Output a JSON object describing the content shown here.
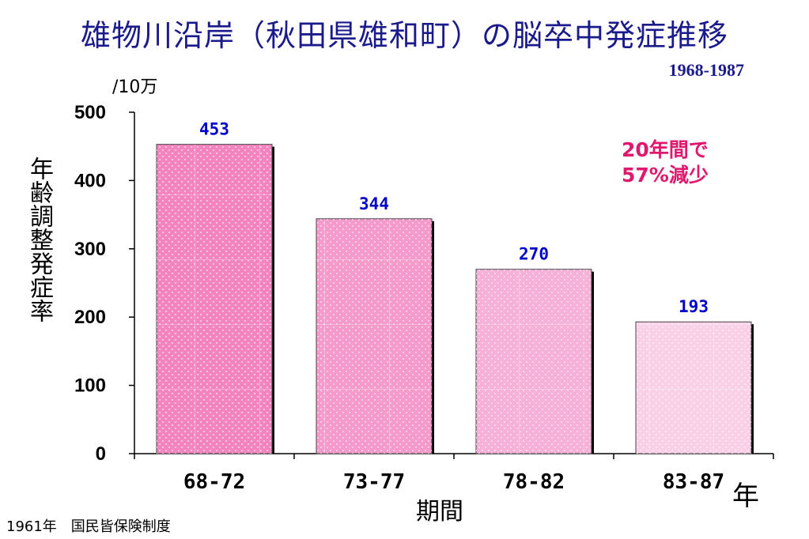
{
  "title": "雄物川沿岸（秋田県雄和町）の脳卒中発症推移",
  "subtitle": "1968-1987",
  "unit_label": "/10万",
  "annotation": "20年間で\n57%減少",
  "year_suffix": "年",
  "note": "1961年　国民皆保険制度",
  "colors": {
    "title": "#1a1a8c",
    "values": "#0000cc",
    "annotation": "#e0186e",
    "bars": [
      "#f284c0",
      "#f59bcc",
      "#f7b1d8",
      "#fad0e7"
    ]
  },
  "chart_data": {
    "type": "bar",
    "categories": [
      "68-72",
      "73-77",
      "78-82",
      "83-87"
    ],
    "values": [
      453,
      344,
      270,
      193
    ],
    "xlabel": "期間",
    "ylabel": "年齢調整発症率",
    "ylim": [
      0,
      500
    ],
    "yticks": [
      0,
      100,
      200,
      300,
      400,
      500
    ],
    "grid": false,
    "legend": "none"
  }
}
